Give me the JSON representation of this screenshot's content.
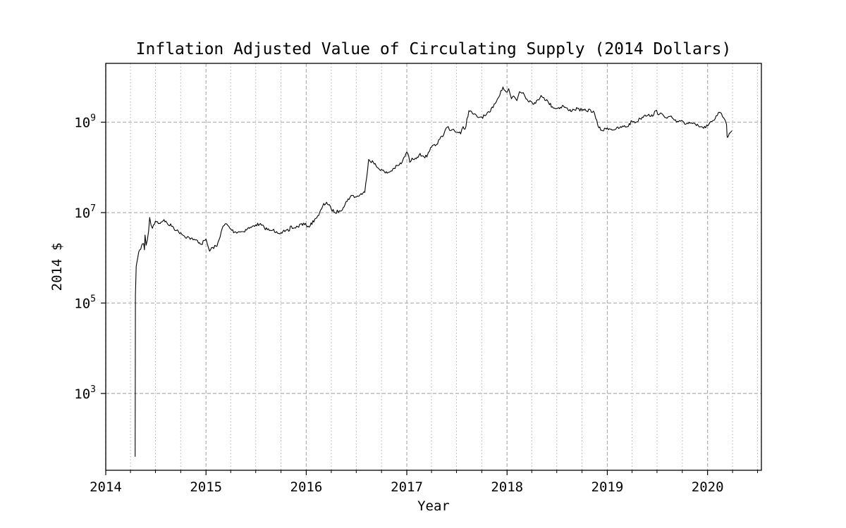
{
  "chart_data": {
    "type": "line",
    "title": "Inflation Adjusted Value of Circulating Supply (2014 Dollars)",
    "xlabel": "Year",
    "ylabel": "2014 $",
    "y_scale": "log",
    "xlim": [
      "2014-01-01",
      "2020-07-15"
    ],
    "ylim": [
      20,
      20000000000
    ],
    "x_ticks": [
      "2014",
      "2015",
      "2016",
      "2017",
      "2018",
      "2019",
      "2020"
    ],
    "y_ticks": [
      {
        "value": 1000,
        "base": "10",
        "exp": "3"
      },
      {
        "value": 100000,
        "base": "10",
        "exp": "5"
      },
      {
        "value": 10000000,
        "base": "10",
        "exp": "7"
      },
      {
        "value": 1000000000,
        "base": "10",
        "exp": "9"
      }
    ],
    "grid": {
      "major": "dashed",
      "minor": "dotted"
    },
    "line_color": "#000000",
    "series": [
      {
        "x": [
          "2014-04-18",
          "2014-04-19",
          "2014-04-22",
          "2014-04-28",
          "2014-05-05",
          "2014-05-12",
          "2014-05-19",
          "2014-05-22",
          "2014-05-24",
          "2014-05-28",
          "2014-06-02",
          "2014-06-06",
          "2014-06-10",
          "2014-06-15",
          "2014-06-20",
          "2014-07-01",
          "2014-07-15",
          "2014-08-01",
          "2014-08-15",
          "2014-09-01",
          "2014-09-15",
          "2014-10-01",
          "2014-10-15",
          "2014-11-01",
          "2014-11-15",
          "2014-12-01",
          "2014-12-15",
          "2015-01-01",
          "2015-01-05",
          "2015-01-14",
          "2015-01-25",
          "2015-02-10",
          "2015-03-01",
          "2015-03-15",
          "2015-04-01",
          "2015-04-15",
          "2015-05-01",
          "2015-05-15",
          "2015-06-01",
          "2015-06-15",
          "2015-07-01",
          "2015-07-15",
          "2015-08-01",
          "2015-08-20",
          "2015-09-01",
          "2015-09-15",
          "2015-10-01",
          "2015-10-15",
          "2015-11-01",
          "2015-11-04",
          "2015-11-15",
          "2015-12-01",
          "2015-12-15",
          "2016-01-01",
          "2016-01-15",
          "2016-02-01",
          "2016-02-15",
          "2016-03-01",
          "2016-03-15",
          "2016-04-01",
          "2016-04-15",
          "2016-05-01",
          "2016-05-15",
          "2016-06-01",
          "2016-06-17",
          "2016-07-01",
          "2016-07-15",
          "2016-08-01",
          "2016-08-15",
          "2016-09-01",
          "2016-09-15",
          "2016-10-01",
          "2016-10-15",
          "2016-11-01",
          "2016-11-15",
          "2016-12-01",
          "2016-12-15",
          "2017-01-01",
          "2017-01-05",
          "2017-01-12",
          "2017-01-20",
          "2017-02-01",
          "2017-02-15",
          "2017-03-01",
          "2017-03-15",
          "2017-03-25",
          "2017-04-01",
          "2017-04-15",
          "2017-05-01",
          "2017-05-15",
          "2017-05-25",
          "2017-06-01",
          "2017-06-10",
          "2017-06-20",
          "2017-07-01",
          "2017-07-16",
          "2017-07-25",
          "2017-08-01",
          "2017-08-15",
          "2017-09-01",
          "2017-09-15",
          "2017-10-01",
          "2017-10-15",
          "2017-11-01",
          "2017-11-15",
          "2017-12-01",
          "2017-12-10",
          "2017-12-17",
          "2017-12-25",
          "2018-01-01",
          "2018-01-07",
          "2018-01-17",
          "2018-01-25",
          "2018-02-06",
          "2018-02-15",
          "2018-03-01",
          "2018-03-15",
          "2018-04-01",
          "2018-04-15",
          "2018-05-05",
          "2018-05-15",
          "2018-06-01",
          "2018-06-15",
          "2018-07-01",
          "2018-07-25",
          "2018-08-15",
          "2018-09-01",
          "2018-09-15",
          "2018-10-01",
          "2018-10-15",
          "2018-11-01",
          "2018-11-15",
          "2018-11-20",
          "2018-12-01",
          "2018-12-15",
          "2019-01-01",
          "2019-01-15",
          "2019-02-01",
          "2019-02-15",
          "2019-03-01",
          "2019-03-15",
          "2019-04-01",
          "2019-04-15",
          "2019-05-01",
          "2019-05-15",
          "2019-06-01",
          "2019-06-15",
          "2019-06-26",
          "2019-07-10",
          "2019-07-25",
          "2019-08-10",
          "2019-08-25",
          "2019-09-10",
          "2019-09-25",
          "2019-10-10",
          "2019-10-26",
          "2019-11-10",
          "2019-11-25",
          "2019-12-10",
          "2019-12-25",
          "2020-01-10",
          "2020-01-25",
          "2020-02-05",
          "2020-02-15",
          "2020-02-25",
          "2020-03-05",
          "2020-03-10",
          "2020-03-12",
          "2020-03-13",
          "2020-03-16",
          "2020-03-20",
          "2020-03-25",
          "2020-03-30"
        ],
        "y": [
          40,
          150000,
          650000,
          1050000,
          1500000,
          1900000,
          2050000,
          1500000,
          3200000,
          1900000,
          2600000,
          3900000,
          7800000,
          5200000,
          4500000,
          6500000,
          5800000,
          7000000,
          5500000,
          5000000,
          4000000,
          3600000,
          3000000,
          2800000,
          2500000,
          2400000,
          2000000,
          2600000,
          2100000,
          1400000,
          1700000,
          1800000,
          4500000,
          5700000,
          4300000,
          3700000,
          3800000,
          3800000,
          4400000,
          4700000,
          5400000,
          5500000,
          4700000,
          4000000,
          4100000,
          3800000,
          3600000,
          3800000,
          4000000,
          5000000,
          4500000,
          4900000,
          5700000,
          5200000,
          5100000,
          7200000,
          8500000,
          14000000,
          17000000,
          12000000,
          10000000,
          11000000,
          13000000,
          20000000,
          24000000,
          22000000,
          25000000,
          28000000,
          150000000,
          130000000,
          100000000,
          90000000,
          75000000,
          80000000,
          95000000,
          110000000,
          130000000,
          220000000,
          200000000,
          130000000,
          160000000,
          160000000,
          190000000,
          180000000,
          170000000,
          230000000,
          280000000,
          300000000,
          420000000,
          520000000,
          750000000,
          800000000,
          650000000,
          700000000,
          600000000,
          550000000,
          800000000,
          700000000,
          1800000000,
          1500000000,
          1300000000,
          1300000000,
          1400000000,
          1700000000,
          2500000000,
          3500000000,
          5000000000,
          6000000000,
          5000000000,
          4600000000,
          5500000000,
          3300000000,
          3800000000,
          3000000000,
          4700000000,
          4500000000,
          3200000000,
          2800000000,
          2600000000,
          3900000000,
          3500000000,
          2700000000,
          2200000000,
          2000000000,
          2300000000,
          1800000000,
          1900000000,
          2000000000,
          1800000000,
          1800000000,
          1850000000,
          1600000000,
          1200000000,
          750000000,
          650000000,
          750000000,
          700000000,
          700000000,
          750000000,
          800000000,
          800000000,
          1050000000,
          1000000000,
          1200000000,
          1400000000,
          1500000000,
          1350000000,
          1800000000,
          1500000000,
          1400000000,
          1300000000,
          1250000000,
          1000000000,
          1050000000,
          900000000,
          1000000000,
          950000000,
          900000000,
          800000000,
          750000000,
          1000000000,
          1100000000,
          1400000000,
          1650000000,
          1300000000,
          1100000000,
          900000000,
          500000000,
          460000000,
          480000000,
          560000000,
          600000000,
          650000000
        ]
      }
    ]
  }
}
